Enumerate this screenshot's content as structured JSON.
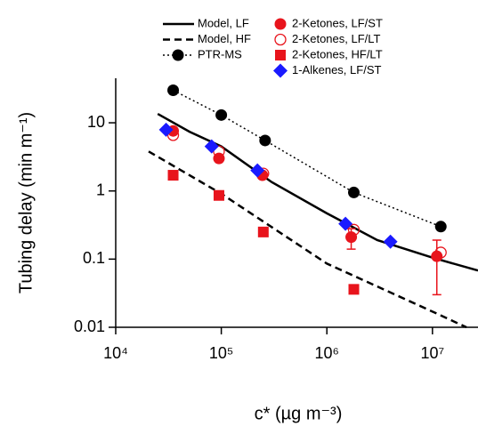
{
  "chart_data": {
    "type": "scatter",
    "log_x": true,
    "log_y": true,
    "xlabel": "c* (µg m⁻³)",
    "ylabel": "Tubing delay (min m⁻¹)",
    "xlim": [
      10000,
      27000000
    ],
    "ylim": [
      0.01,
      45
    ],
    "xticks": [
      {
        "value": 10000,
        "label": "10⁴"
      },
      {
        "value": 100000,
        "label": "10⁵"
      },
      {
        "value": 1000000,
        "label": "10⁶"
      },
      {
        "value": 10000000,
        "label": "10⁷"
      }
    ],
    "yticks": [
      0.01,
      0.1,
      1,
      10
    ],
    "series": [
      {
        "name": "Model, LF",
        "color": "#000000",
        "line": "solid",
        "marker": null,
        "x": [
          25000,
          50000,
          100000,
          300000,
          1000000,
          3000000,
          10000000,
          27000000
        ],
        "values": [
          13.5,
          7.4,
          4.5,
          1.35,
          0.47,
          0.19,
          0.105,
          0.068
        ]
      },
      {
        "name": "Model, HF",
        "color": "#000000",
        "line": "dashed",
        "marker": null,
        "x": [
          20500,
          100000,
          1000000,
          10000000,
          21000000
        ],
        "values": [
          3.8,
          0.91,
          0.086,
          0.017,
          0.01
        ]
      },
      {
        "name": "PTR-MS",
        "color": "#000000",
        "line": "dotted",
        "marker": "circle",
        "x": [
          35000,
          100000,
          260000,
          1800000,
          12000000
        ],
        "values": [
          30,
          13,
          5.5,
          0.95,
          0.3
        ]
      },
      {
        "name": "2-Ketones, LF/ST",
        "color": "#e8141c",
        "line": null,
        "marker": "circle",
        "x": [
          35000,
          95000,
          245000,
          1700000,
          11000000
        ],
        "values": [
          7.6,
          3.0,
          1.7,
          0.21,
          0.11
        ],
        "errors": [
          null,
          null,
          null,
          0.07,
          0.08
        ]
      },
      {
        "name": "2-Ketones, LF/LT",
        "color": "#e8141c",
        "line": null,
        "marker": "circle-open",
        "x": [
          35000,
          95000,
          250000,
          1800000,
          12000000
        ],
        "values": [
          6.6,
          3.8,
          1.8,
          0.27,
          0.125
        ]
      },
      {
        "name": "2-Ketones, HF/LT",
        "color": "#e8141c",
        "line": null,
        "marker": "square",
        "x": [
          35000,
          95000,
          250000,
          1800000
        ],
        "values": [
          1.7,
          0.86,
          0.25,
          0.036
        ]
      },
      {
        "name": "1-Alkenes, LF/ST",
        "color": "#1a1aff",
        "line": null,
        "marker": "diamond",
        "x": [
          30000,
          81000,
          220000,
          1500000,
          4000000
        ],
        "values": [
          7.9,
          4.5,
          2.0,
          0.33,
          0.18
        ]
      }
    ]
  }
}
